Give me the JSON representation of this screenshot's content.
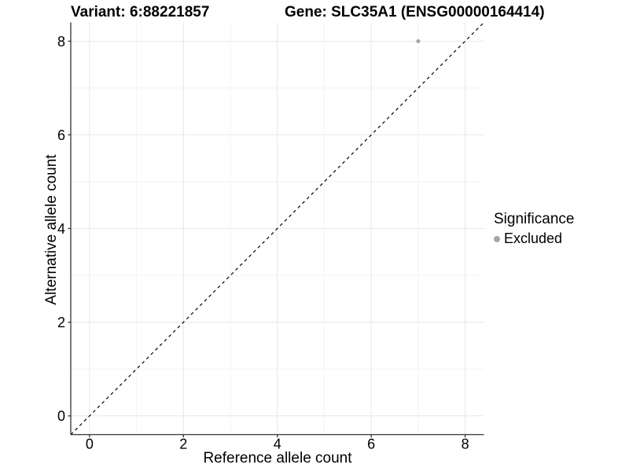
{
  "header": {
    "variant_title": "Variant: 6:88221857",
    "gene_title": "Gene: SLC35A1 (ENSG00000164414)"
  },
  "chart_data": {
    "type": "scatter",
    "title": "Variant: 6:88221857    Gene: SLC35A1 (ENSG00000164414)",
    "xlabel": "Reference allele count",
    "ylabel": "Alternative allele count",
    "xlim": [
      -0.4,
      8.4
    ],
    "ylim": [
      -0.4,
      8.4
    ],
    "x_ticks": [
      0,
      2,
      4,
      6,
      8
    ],
    "y_ticks": [
      0,
      2,
      4,
      6,
      8
    ],
    "minor_ticks": [
      1,
      3,
      5,
      7
    ],
    "grid": true,
    "series": [
      {
        "name": "Excluded",
        "points": [
          [
            7,
            8
          ]
        ],
        "color": "#a6a6a6",
        "marker": "circle"
      }
    ],
    "reference_line": {
      "type": "identity",
      "style": "dashed",
      "from": [
        -0.4,
        -0.4
      ],
      "to": [
        8.4,
        8.4
      ],
      "color": "#000000"
    },
    "legend": {
      "title": "Significance",
      "position": "right",
      "entries": [
        {
          "label": "Excluded",
          "color": "#a6a6a6",
          "marker": "circle"
        }
      ]
    }
  },
  "style": {
    "background": "#ffffff",
    "grid_major": "#e7e7e7",
    "grid_minor": "#f3f3f3",
    "axis_line": "#333333",
    "tick_color": "#333333",
    "text_color": "#000000",
    "point_color": "#a6a6a6"
  }
}
